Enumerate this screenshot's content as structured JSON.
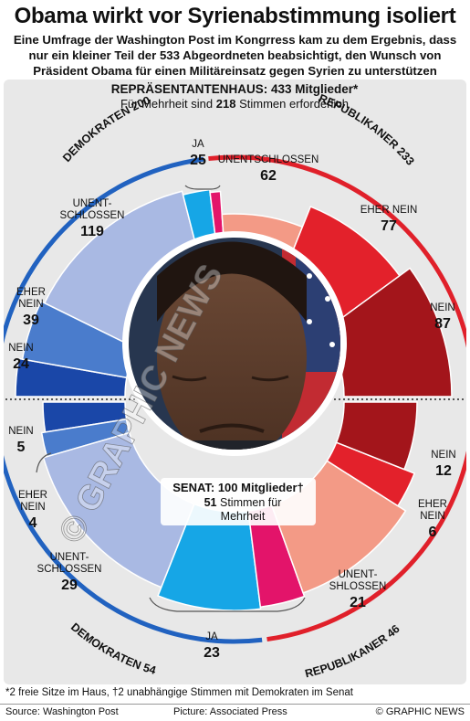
{
  "title": "Obama wirkt vor Syrienabstimmung isoliert",
  "subtitle": [
    "Eine Umfrage der Washington Post im Kongrress kam zu dem Ergebnis, dass",
    "nur ein kleiner Teil der 533 Abgeordneten beabsichtigt, den Wunsch von",
    "Präsident Obama für einen Militäreinsatz gegen Syrien zu unterstützen"
  ],
  "colors": {
    "dem_nein": "#1a47a8",
    "dem_eher_nein": "#4a7ccc",
    "dem_unentschlossen": "#a9b9e3",
    "dem_ja": "#16a6e6",
    "rep_ja": "#e3146a",
    "rep_unentschlossen": "#f39a86",
    "rep_eher_nein": "#e3212b",
    "rep_nein": "#a3151b",
    "dem_arc": "#2162c0",
    "rep_arc": "#e0202a"
  },
  "chart_data": [
    {
      "type": "pie",
      "title": "REPRÄSENTANTENHAUS: 433 Mitglieder*",
      "subtitle_prefix": "Für Mehrheit sind",
      "subtitle_number": "218",
      "subtitle_suffix": "Stimmen erforderlich",
      "groups": [
        {
          "name": "DEMOKRATEN 200",
          "total": 200
        },
        {
          "name": "REPUBLIKANER 233",
          "total": 233
        }
      ],
      "slices": [
        {
          "party": "dem",
          "category": "NEIN",
          "value": 24
        },
        {
          "party": "dem",
          "category": "EHER NEIN",
          "value": 39
        },
        {
          "party": "dem",
          "category": "UNENTSCHLOSSEN",
          "value": 119
        },
        {
          "party": "dem",
          "category": "JA",
          "value": 18
        },
        {
          "party": "rep",
          "category": "JA",
          "value": 7
        },
        {
          "party": "rep",
          "category": "UNENTSCHLOSSEN",
          "value": 62
        },
        {
          "party": "rep",
          "category": "EHER NEIN",
          "value": 77
        },
        {
          "party": "rep",
          "category": "NEIN",
          "value": 87
        }
      ],
      "labels": [
        {
          "lines": [
            "JA"
          ],
          "value": "25"
        },
        {
          "lines": [
            "UNENTSCHLOSSEN"
          ],
          "value": "62"
        },
        {
          "lines": [
            "UNENT-",
            "SCHLOSSEN"
          ],
          "value": "119"
        },
        {
          "lines": [
            "EHER NEIN"
          ],
          "value": "77"
        },
        {
          "lines": [
            "EHER",
            "NEIN"
          ],
          "value": "39"
        },
        {
          "lines": [
            "NEIN"
          ],
          "value": "87"
        },
        {
          "lines": [
            "NEIN"
          ],
          "value": "24"
        }
      ]
    },
    {
      "type": "pie",
      "title": "SENAT: 100 Mitglieder†",
      "subtitle_lines": [
        "51 Stimmen für",
        "Mehrheit"
      ],
      "groups": [
        {
          "name": "DEMOKRATEN 54",
          "total": 54
        },
        {
          "name": "REPUBLIKANER 46",
          "total": 46
        }
      ],
      "slices": [
        {
          "party": "dem",
          "category": "NEIN",
          "value": 5
        },
        {
          "party": "dem",
          "category": "EHER NEIN",
          "value": 4
        },
        {
          "party": "dem",
          "category": "UNENTSCHLOSSEN",
          "value": 29
        },
        {
          "party": "dem",
          "category": "JA",
          "value": 16
        },
        {
          "party": "rep",
          "category": "JA",
          "value": 7
        },
        {
          "party": "rep",
          "category": "UNENTSCHLOSSEN",
          "value": 21
        },
        {
          "party": "rep",
          "category": "EHER NEIN",
          "value": 6
        },
        {
          "party": "rep",
          "category": "NEIN",
          "value": 12
        }
      ],
      "labels": [
        {
          "lines": [
            "NEIN"
          ],
          "value": "5"
        },
        {
          "lines": [
            "NEIN"
          ],
          "value": "12"
        },
        {
          "lines": [
            "EHER",
            "NEIN"
          ],
          "value": "4"
        },
        {
          "lines": [
            "EHER",
            "NEIN"
          ],
          "value": "6"
        },
        {
          "lines": [
            "UNENT-",
            "SCHLOSSEN"
          ],
          "value": "29"
        },
        {
          "lines": [
            "UNENT-",
            "SHLOSSEN"
          ],
          "value": "21"
        },
        {
          "lines": [
            "JA"
          ],
          "value": "23"
        }
      ]
    }
  ],
  "watermark": "© GRAPHIC NEWS",
  "footnote": "*2 freie Sitze im Haus,  †2 unabhängige Stimmen mit Demokraten im Senat",
  "sources": {
    "source": "Source: Washington Post",
    "picture": "Picture: Associated Press",
    "credit": "© GRAPHIC NEWS"
  }
}
